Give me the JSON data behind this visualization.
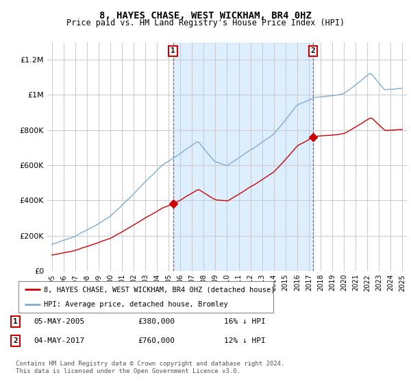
{
  "title": "8, HAYES CHASE, WEST WICKHAM, BR4 0HZ",
  "subtitle": "Price paid vs. HM Land Registry's House Price Index (HPI)",
  "legend_entry1": "8, HAYES CHASE, WEST WICKHAM, BR4 0HZ (detached house)",
  "legend_entry2": "HPI: Average price, detached house, Bromley",
  "annotation1_date": "05-MAY-2005",
  "annotation1_price": "£380,000",
  "annotation1_hpi": "16% ↓ HPI",
  "annotation1_year": 2005.37,
  "annotation1_value": 380000,
  "annotation2_date": "04-MAY-2017",
  "annotation2_price": "£760,000",
  "annotation2_hpi": "12% ↓ HPI",
  "annotation2_year": 2017.37,
  "annotation2_value": 760000,
  "footer": "Contains HM Land Registry data © Crown copyright and database right 2024.\nThis data is licensed under the Open Government Licence v3.0.",
  "hpi_color": "#7dadd4",
  "price_color": "#cc0000",
  "bg_color": "#ffffff",
  "shade_color": "#ddeeff",
  "ylim": [
    0,
    1300000
  ],
  "yticks": [
    0,
    200000,
    400000,
    600000,
    800000,
    1000000,
    1200000
  ]
}
